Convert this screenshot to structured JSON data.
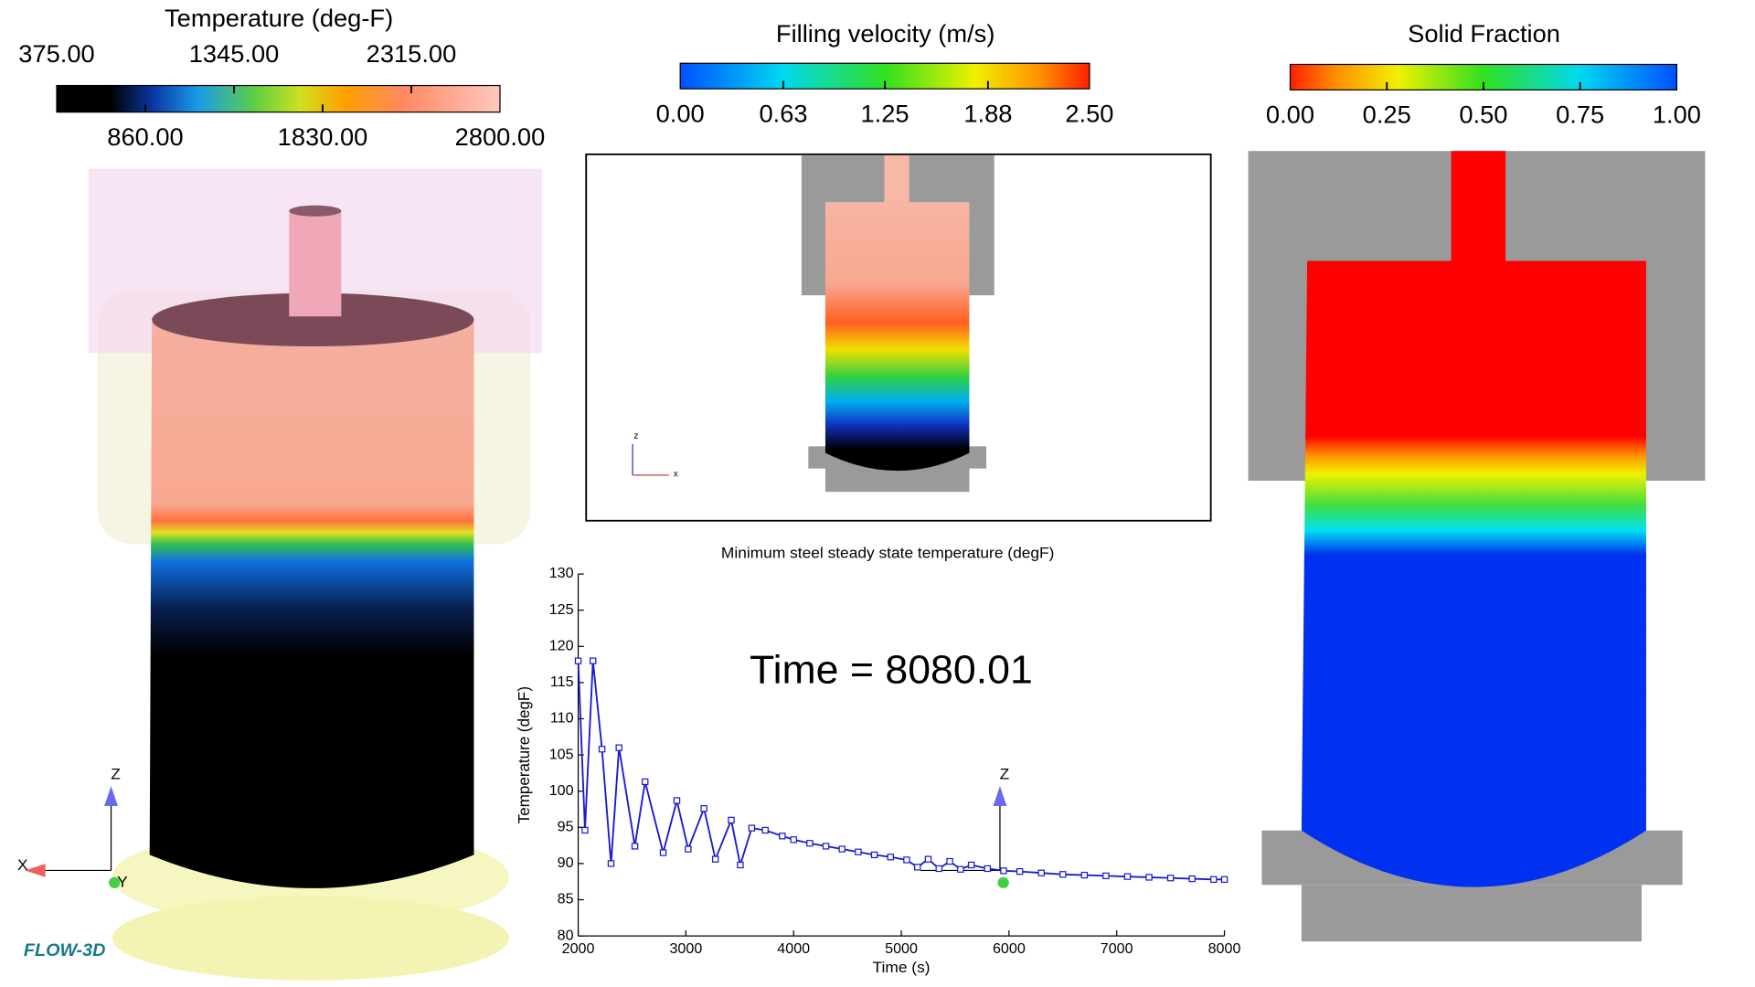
{
  "legends": [
    {
      "title": "Temperature (deg-F)",
      "range": [
        375,
        2800
      ],
      "label_position": "alternate",
      "ticks": [
        {
          "value": 375,
          "label": "375.00"
        },
        {
          "value": 860,
          "label": "860.00"
        },
        {
          "value": 1345,
          "label": "1345.00"
        },
        {
          "value": 1830,
          "label": "1830.00"
        },
        {
          "value": 2315,
          "label": "2315.00"
        },
        {
          "value": 2800,
          "label": "2800.00"
        }
      ]
    },
    {
      "title": "Filling velocity (m/s)",
      "range": [
        0,
        2.5
      ],
      "label_position": "below",
      "ticks": [
        {
          "value": 0,
          "label": "0.00"
        },
        {
          "value": 0.63,
          "label": "0.63"
        },
        {
          "value": 1.25,
          "label": "1.25"
        },
        {
          "value": 1.88,
          "label": "1.88"
        },
        {
          "value": 2.5,
          "label": "2.50"
        }
      ]
    },
    {
      "title": "Solid Fraction",
      "range": [
        0,
        1
      ],
      "label_position": "below",
      "ticks": [
        {
          "value": 0,
          "label": "0.00"
        },
        {
          "value": 0.25,
          "label": "0.25"
        },
        {
          "value": 0.5,
          "label": "0.50"
        },
        {
          "value": 0.75,
          "label": "0.75"
        },
        {
          "value": 1,
          "label": "1.00"
        }
      ]
    }
  ],
  "annotation": "Time = 8080.01",
  "logo": "FLOW-3D",
  "triad_left": [
    "X",
    "Y",
    "Z"
  ],
  "triad_center": [
    "Z"
  ],
  "triad_mini": [
    "z",
    "x"
  ],
  "chart_data": {
    "type": "line",
    "title": "Minimum steel steady state temperature (degF)",
    "x_label": "Time (s)",
    "y_label": "Temperature (degF)",
    "color": "#1a1ad0",
    "x": [
      2000,
      2063,
      2137,
      2221,
      2305,
      2379,
      2526,
      2621,
      2789,
      2916,
      3021,
      3168,
      3274,
      3421,
      3505,
      3611,
      3737,
      3895,
      4000,
      4150,
      4300,
      4450,
      4600,
      4750,
      4900,
      5050,
      5150,
      5250,
      5350,
      5450,
      5550,
      5650,
      5800,
      5950,
      6100,
      6300,
      6500,
      6700,
      6900,
      7100,
      7300,
      7500,
      7700,
      7900,
      8000
    ],
    "values": [
      118,
      94.6,
      118,
      105.8,
      90,
      106,
      92.4,
      101.3,
      91.5,
      98.7,
      92,
      97.6,
      90.6,
      96,
      89.8,
      94.9,
      94.6,
      93.8,
      93.3,
      92.8,
      92.4,
      92,
      91.6,
      91.2,
      90.9,
      90.5,
      89.5,
      90.6,
      89.3,
      90.3,
      89.2,
      89.8,
      89.3,
      89,
      88.9,
      88.7,
      88.5,
      88.4,
      88.3,
      88.2,
      88.1,
      88,
      87.9,
      87.8,
      87.8
    ],
    "xlim": [
      2000,
      8000
    ],
    "xticks": [
      2000,
      3000,
      4000,
      5000,
      6000,
      7000,
      8000
    ],
    "ylim": [
      80,
      130
    ],
    "yticks": [
      80,
      85,
      90,
      95,
      100,
      105,
      110,
      115,
      120,
      125,
      130
    ]
  }
}
